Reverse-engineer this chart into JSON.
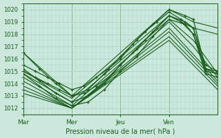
{
  "xlabel": "Pression niveau de la mer( hPa )",
  "ylim": [
    1011.5,
    1020.5
  ],
  "yticks": [
    1012,
    1013,
    1014,
    1015,
    1016,
    1017,
    1018,
    1019,
    1020
  ],
  "day_labels": [
    "Mar",
    "Mer",
    "Jeu",
    "Ven"
  ],
  "day_positions": [
    0,
    24,
    48,
    72
  ],
  "total_hours": 96,
  "bg_color": "#cce8dc",
  "grid_color": "#aad4c4",
  "line_color": "#1a5c1a",
  "straight_lines": [
    {
      "x": [
        0,
        24,
        72,
        84,
        96
      ],
      "y": [
        1016.5,
        1013.0,
        1020.0,
        1019.0,
        1018.5
      ]
    },
    {
      "x": [
        0,
        24,
        72,
        84,
        96
      ],
      "y": [
        1015.0,
        1012.8,
        1019.5,
        1018.5,
        1018.0
      ]
    },
    {
      "x": [
        0,
        24,
        72,
        84,
        96
      ],
      "y": [
        1014.8,
        1012.5,
        1019.2,
        1017.5,
        1014.8
      ]
    },
    {
      "x": [
        0,
        24,
        72,
        84,
        96
      ],
      "y": [
        1014.5,
        1012.2,
        1019.0,
        1017.0,
        1014.5
      ]
    },
    {
      "x": [
        0,
        24,
        72,
        96
      ],
      "y": [
        1014.2,
        1012.0,
        1018.5,
        1014.2
      ]
    },
    {
      "x": [
        0,
        24,
        72,
        96
      ],
      "y": [
        1013.8,
        1012.0,
        1018.2,
        1014.0
      ]
    },
    {
      "x": [
        0,
        24,
        72,
        96
      ],
      "y": [
        1013.5,
        1012.0,
        1017.8,
        1013.8
      ]
    },
    {
      "x": [
        0,
        24,
        72,
        96
      ],
      "y": [
        1013.2,
        1012.0,
        1017.5,
        1013.5
      ]
    }
  ],
  "marker_lines": [
    {
      "x": [
        0,
        8,
        16,
        24,
        32,
        40,
        48,
        56,
        64,
        72,
        80,
        84,
        90,
        96
      ],
      "y": [
        1016.5,
        1015.2,
        1014.0,
        1013.0,
        1013.5,
        1014.8,
        1016.2,
        1017.5,
        1018.8,
        1020.0,
        1019.5,
        1019.2,
        1015.2,
        1015.0
      ]
    },
    {
      "x": [
        0,
        8,
        16,
        24,
        32,
        40,
        48,
        56,
        64,
        72,
        80,
        84,
        90,
        96
      ],
      "y": [
        1015.2,
        1014.2,
        1013.2,
        1012.5,
        1013.0,
        1014.0,
        1015.5,
        1016.8,
        1018.2,
        1019.5,
        1019.0,
        1018.5,
        1015.0,
        1014.8
      ]
    },
    {
      "x": [
        0,
        8,
        16,
        24,
        32,
        40,
        48,
        56,
        64,
        72,
        80,
        84,
        90,
        96
      ],
      "y": [
        1014.8,
        1013.8,
        1012.8,
        1012.2,
        1012.5,
        1013.5,
        1015.0,
        1016.2,
        1017.8,
        1019.2,
        1018.8,
        1018.0,
        1014.8,
        1014.5
      ]
    },
    {
      "x": [
        0,
        6,
        12,
        18,
        24,
        30,
        36,
        42,
        48,
        54,
        60,
        66,
        72,
        78,
        84,
        90,
        96
      ],
      "y": [
        1015.5,
        1015.0,
        1014.5,
        1014.0,
        1013.5,
        1013.8,
        1014.5,
        1015.2,
        1016.0,
        1017.2,
        1018.2,
        1019.0,
        1019.8,
        1019.2,
        1018.5,
        1015.5,
        1015.0
      ]
    },
    {
      "x": [
        0,
        6,
        12,
        18,
        24,
        30,
        36,
        42,
        48,
        54,
        60,
        66,
        72,
        78,
        84,
        90,
        96
      ],
      "y": [
        1015.0,
        1014.5,
        1014.0,
        1013.5,
        1013.0,
        1013.2,
        1013.8,
        1014.5,
        1015.5,
        1016.5,
        1017.5,
        1018.5,
        1019.5,
        1019.0,
        1018.0,
        1015.2,
        1014.8
      ]
    }
  ]
}
